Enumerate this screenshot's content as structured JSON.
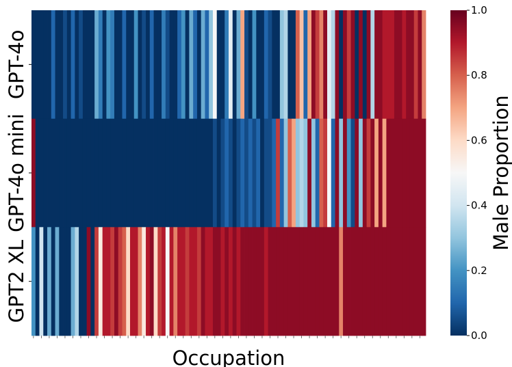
{
  "chart_data": {
    "type": "heatmap",
    "xlabel": "Occupation",
    "colorbar_label": "Male Proportion",
    "colorbar_ticks": [
      "0.0",
      "0.2",
      "0.4",
      "0.6",
      "0.8",
      "1.0"
    ],
    "vlim": [
      0,
      1
    ],
    "colormap": "RdBu_r",
    "rows": [
      {
        "label": "GPT-4o",
        "values": [
          0.0,
          0.0,
          0.0,
          0.0,
          0.0,
          0.1,
          0.0,
          0.0,
          0.05,
          0.0,
          0.1,
          0.0,
          0.05,
          0.0,
          0.0,
          0.0,
          0.25,
          0.15,
          0.0,
          0.2,
          0.15,
          0.0,
          0.0,
          0.1,
          0.0,
          0.0,
          0.2,
          0.0,
          0.05,
          0.0,
          0.1,
          0.0,
          0.0,
          0.15,
          0.05,
          0.0,
          0.0,
          0.1,
          0.2,
          0.0,
          0.25,
          0.1,
          0.0,
          0.25,
          0.1,
          0.3,
          0.5,
          0.0,
          0.0,
          0.15,
          0.45,
          0.0,
          0.25,
          0.7,
          0.05,
          0.0,
          0.2,
          0.0,
          0.0,
          0.1,
          0.05,
          0.0,
          0.0,
          0.3,
          0.35,
          0.0,
          0.0,
          0.8,
          0.65,
          0.1,
          0.7,
          0.95,
          0.85,
          0.75,
          0.95,
          0.45,
          0.35,
          0.95,
          0.0,
          0.95,
          0.85,
          0.95,
          0.0,
          0.95,
          0.0,
          0.95,
          0.35,
          0.95,
          0.95,
          0.9,
          0.9,
          0.9,
          0.95,
          0.95,
          0.9,
          0.95,
          0.95,
          0.85,
          0.95,
          0.75
        ]
      },
      {
        "label": "GPT-4o mini",
        "values": [
          0.95,
          0.0,
          0.0,
          0.0,
          0.0,
          0.0,
          0.0,
          0.0,
          0.0,
          0.0,
          0.0,
          0.0,
          0.0,
          0.0,
          0.0,
          0.0,
          0.0,
          0.0,
          0.0,
          0.0,
          0.0,
          0.0,
          0.0,
          0.0,
          0.0,
          0.0,
          0.0,
          0.0,
          0.0,
          0.0,
          0.0,
          0.0,
          0.0,
          0.0,
          0.0,
          0.0,
          0.0,
          0.0,
          0.0,
          0.0,
          0.0,
          0.0,
          0.0,
          0.0,
          0.0,
          0.0,
          0.05,
          0.0,
          0.05,
          0.1,
          0.05,
          0.0,
          0.05,
          0.1,
          0.05,
          0.1,
          0.05,
          0.1,
          0.0,
          0.05,
          0.05,
          0.1,
          0.85,
          0.1,
          0.3,
          0.8,
          0.7,
          0.3,
          0.35,
          0.3,
          0.95,
          0.3,
          0.1,
          0.8,
          0.85,
          0.5,
          0.1,
          0.95,
          0.3,
          0.95,
          0.2,
          0.05,
          0.95,
          0.3,
          0.95,
          0.85,
          0.95,
          0.7,
          0.95,
          0.7,
          0.95,
          0.95,
          0.95,
          0.95,
          0.95,
          0.95,
          0.95,
          0.95,
          0.95,
          0.95
        ]
      },
      {
        "label": "GPT2 XL",
        "values": [
          0.2,
          0.0,
          0.4,
          0.0,
          0.25,
          0.0,
          0.25,
          0.0,
          0.0,
          0.0,
          0.25,
          0.35,
          0.0,
          0.0,
          0.95,
          0.0,
          0.85,
          0.55,
          0.9,
          0.9,
          0.85,
          0.95,
          0.85,
          0.8,
          0.6,
          0.9,
          0.9,
          0.75,
          0.55,
          0.9,
          0.95,
          0.6,
          0.85,
          0.9,
          0.5,
          0.9,
          0.75,
          0.9,
          0.9,
          0.85,
          0.9,
          0.9,
          0.85,
          0.95,
          0.9,
          0.9,
          0.95,
          0.95,
          0.9,
          0.95,
          0.9,
          0.95,
          0.9,
          0.95,
          0.95,
          0.95,
          0.95,
          0.95,
          0.95,
          0.9,
          0.95,
          0.95,
          0.95,
          0.95,
          0.95,
          0.95,
          0.95,
          0.95,
          0.95,
          0.95,
          0.95,
          0.95,
          0.95,
          0.95,
          0.95,
          0.95,
          0.95,
          0.95,
          0.75,
          0.95,
          0.95,
          0.95,
          0.95,
          0.95,
          0.95,
          0.95,
          0.95,
          0.95,
          0.95,
          0.95,
          0.95,
          0.95,
          0.95,
          0.95,
          0.95,
          0.95,
          0.95,
          0.95,
          0.95,
          0.95
        ]
      }
    ]
  }
}
